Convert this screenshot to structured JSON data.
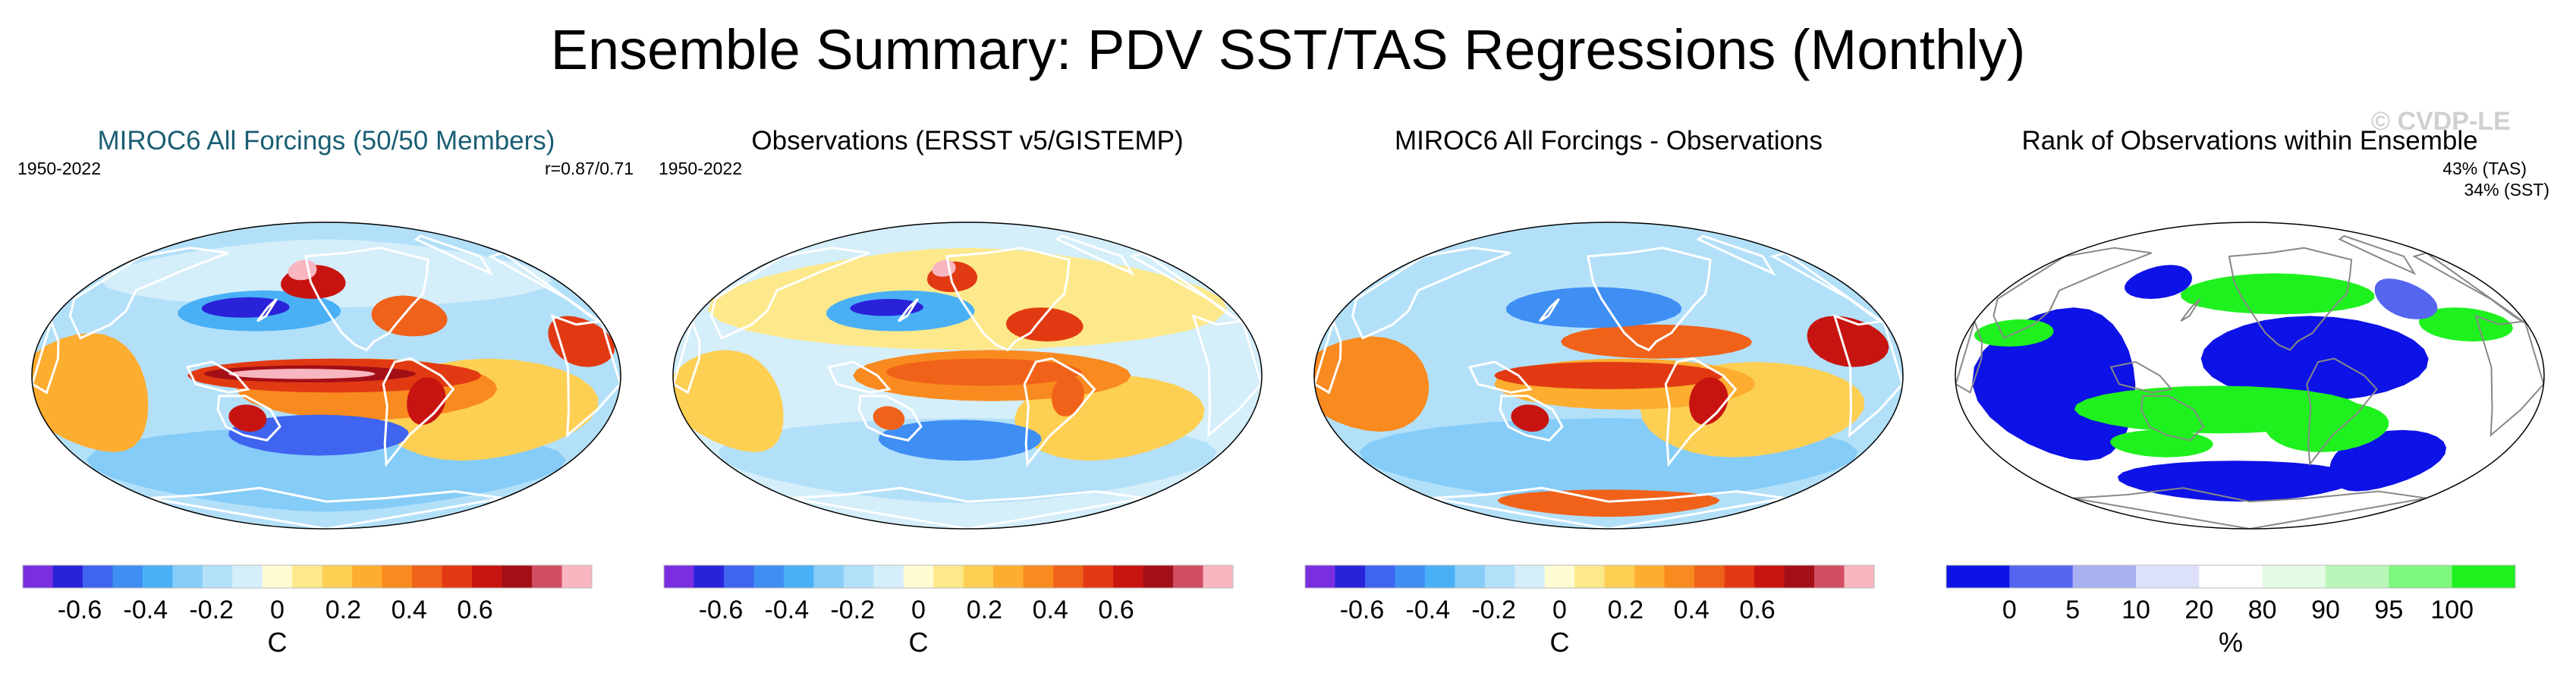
{
  "title": "Ensemble Summary: PDV SST/TAS Regressions (Monthly)",
  "watermark": "© CVDP-LE",
  "colors": {
    "div_scale": [
      "#7a2ee0",
      "#2a22d8",
      "#3e64f0",
      "#3f8ef4",
      "#4ab0f6",
      "#86ccf8",
      "#b3e0f9",
      "#d4eefa",
      "#fffbd2",
      "#fde98b",
      "#fdcf53",
      "#fdad30",
      "#f98a1f",
      "#f0621a",
      "#e13a13",
      "#c81411",
      "#a30f17",
      "#d14d62",
      "#f8b6c0"
    ],
    "rank_scale": [
      "#0d12e6",
      "#5566ee",
      "#a9b0f2",
      "#dde0fa",
      "#ffffff",
      "#e3fbe3",
      "#b9f5b9",
      "#7df77d",
      "#1ef11e"
    ]
  },
  "panels": [
    {
      "title": "MIROC6 All Forcings (50/50 Members)",
      "period": "1950-2022",
      "corr": "r=0.87/0.71",
      "map_type": "model",
      "colorbar": {
        "ticks": [
          "-0.6",
          "-0.4",
          "-0.2",
          "0",
          "0.2",
          "0.4",
          "0.6"
        ],
        "tick_values": [
          -0.6,
          -0.4,
          -0.2,
          0,
          0.2,
          0.4,
          0.6
        ],
        "unit": "C"
      }
    },
    {
      "title": "Observations (ERSST v5/GISTEMP)",
      "period": "1950-2022",
      "map_type": "obs",
      "colorbar": {
        "ticks": [
          "-0.6",
          "-0.4",
          "-0.2",
          "0",
          "0.2",
          "0.4",
          "0.6"
        ],
        "tick_values": [
          -0.6,
          -0.4,
          -0.2,
          0,
          0.2,
          0.4,
          0.6
        ],
        "unit": "C"
      }
    },
    {
      "title": "MIROC6 All Forcings - Observations",
      "map_type": "diff",
      "colorbar": {
        "ticks": [
          "-0.6",
          "-0.4",
          "-0.2",
          "0",
          "0.2",
          "0.4",
          "0.6"
        ],
        "tick_values": [
          -0.6,
          -0.4,
          -0.2,
          0,
          0.2,
          0.4,
          0.6
        ],
        "unit": "C"
      }
    },
    {
      "title": "Rank of Observations within Ensemble",
      "tas_pct": "43% (TAS)",
      "sst_pct": "34% (SST)",
      "map_type": "rank",
      "colorbar": {
        "ticks": [
          "0",
          "5",
          "10",
          "20",
          "80",
          "90",
          "95",
          "100"
        ],
        "unit": "%"
      }
    }
  ]
}
